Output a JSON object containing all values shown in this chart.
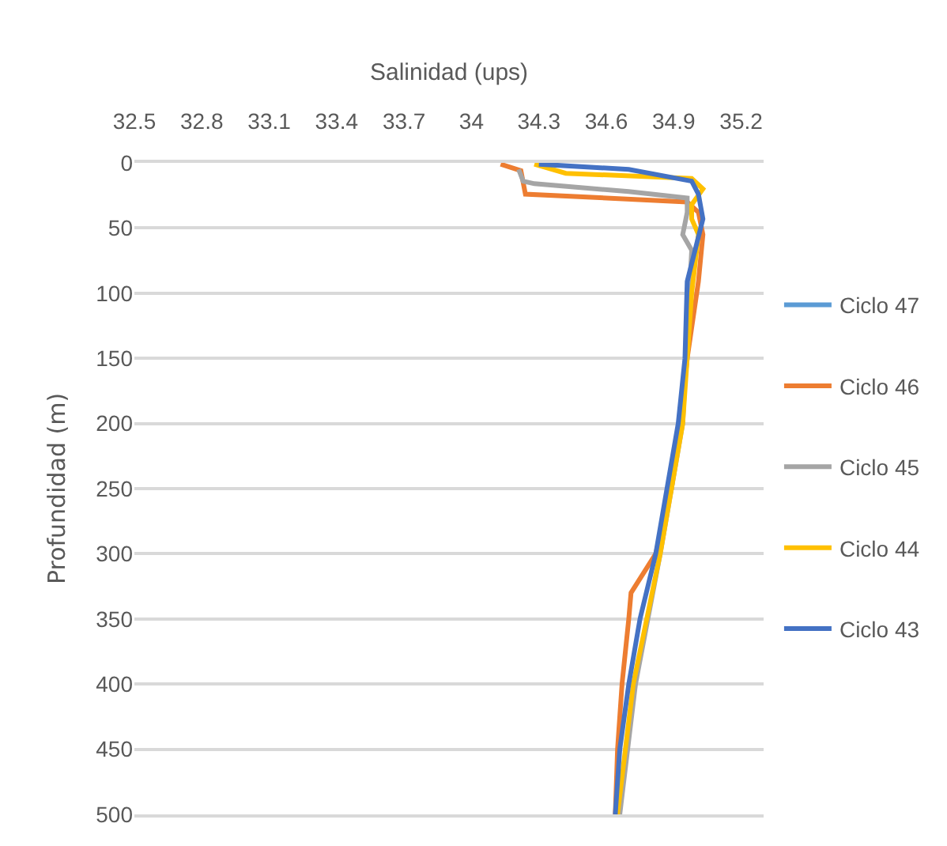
{
  "chart_data": {
    "type": "line",
    "xlabel": "Salinidad (ups)",
    "ylabel": "Profundidad (m)",
    "xlim": [
      32.5,
      35.3
    ],
    "xticks": [
      32.5,
      32.8,
      33.1,
      33.4,
      33.7,
      34,
      34.3,
      34.6,
      34.9,
      35.2
    ],
    "ylim": [
      500,
      0
    ],
    "yticks": [
      0,
      50,
      100,
      150,
      200,
      250,
      300,
      350,
      400,
      450,
      500
    ],
    "grid": "y",
    "legend": "right",
    "marker": "none",
    "line_style": "solid",
    "series": [
      {
        "name": "Ciclo 47",
        "color": "#5b9bd5",
        "x": [
          null
        ],
        "values": [
          null
        ]
      },
      {
        "name": "Ciclo 46",
        "color": "#ed7d31",
        "x": [
          34.13,
          34.22,
          34.24,
          34.96,
          35.01,
          35.03,
          35.01,
          34.96,
          34.93,
          34.89,
          34.82,
          34.71,
          34.7,
          34.67,
          34.65,
          34.64
        ],
        "values": [
          1,
          6,
          24,
          30,
          38,
          55,
          91,
          150,
          200,
          250,
          300,
          330,
          350,
          400,
          450,
          500
        ]
      },
      {
        "name": "Ciclo 45",
        "color": "#a5a5a5",
        "x": [
          34.21,
          34.23,
          34.28,
          34.7,
          34.96,
          34.96,
          34.94,
          34.98,
          34.97,
          34.94,
          34.84,
          34.73,
          34.66
        ],
        "values": [
          5,
          14,
          16,
          22,
          27,
          38,
          55,
          67,
          100,
          200,
          300,
          400,
          500
        ]
      },
      {
        "name": "Ciclo 44",
        "color": "#ffc000",
        "x": [
          34.28,
          34.42,
          34.98,
          35.03,
          34.98,
          34.98,
          35.01,
          34.98,
          34.94,
          34.84,
          34.72,
          34.65
        ],
        "values": [
          1,
          8,
          12,
          20,
          32,
          43,
          55,
          100,
          200,
          300,
          400,
          500
        ]
      },
      {
        "name": "Ciclo 43",
        "color": "#4472c4",
        "x": [
          34.3,
          34.7,
          34.98,
          35.01,
          35.03,
          34.96,
          34.95,
          34.92,
          34.87,
          34.82,
          34.75,
          34.7,
          34.66,
          34.64
        ],
        "values": [
          1,
          5,
          14,
          24,
          43,
          91,
          150,
          200,
          250,
          300,
          350,
          400,
          450,
          500
        ]
      }
    ]
  }
}
